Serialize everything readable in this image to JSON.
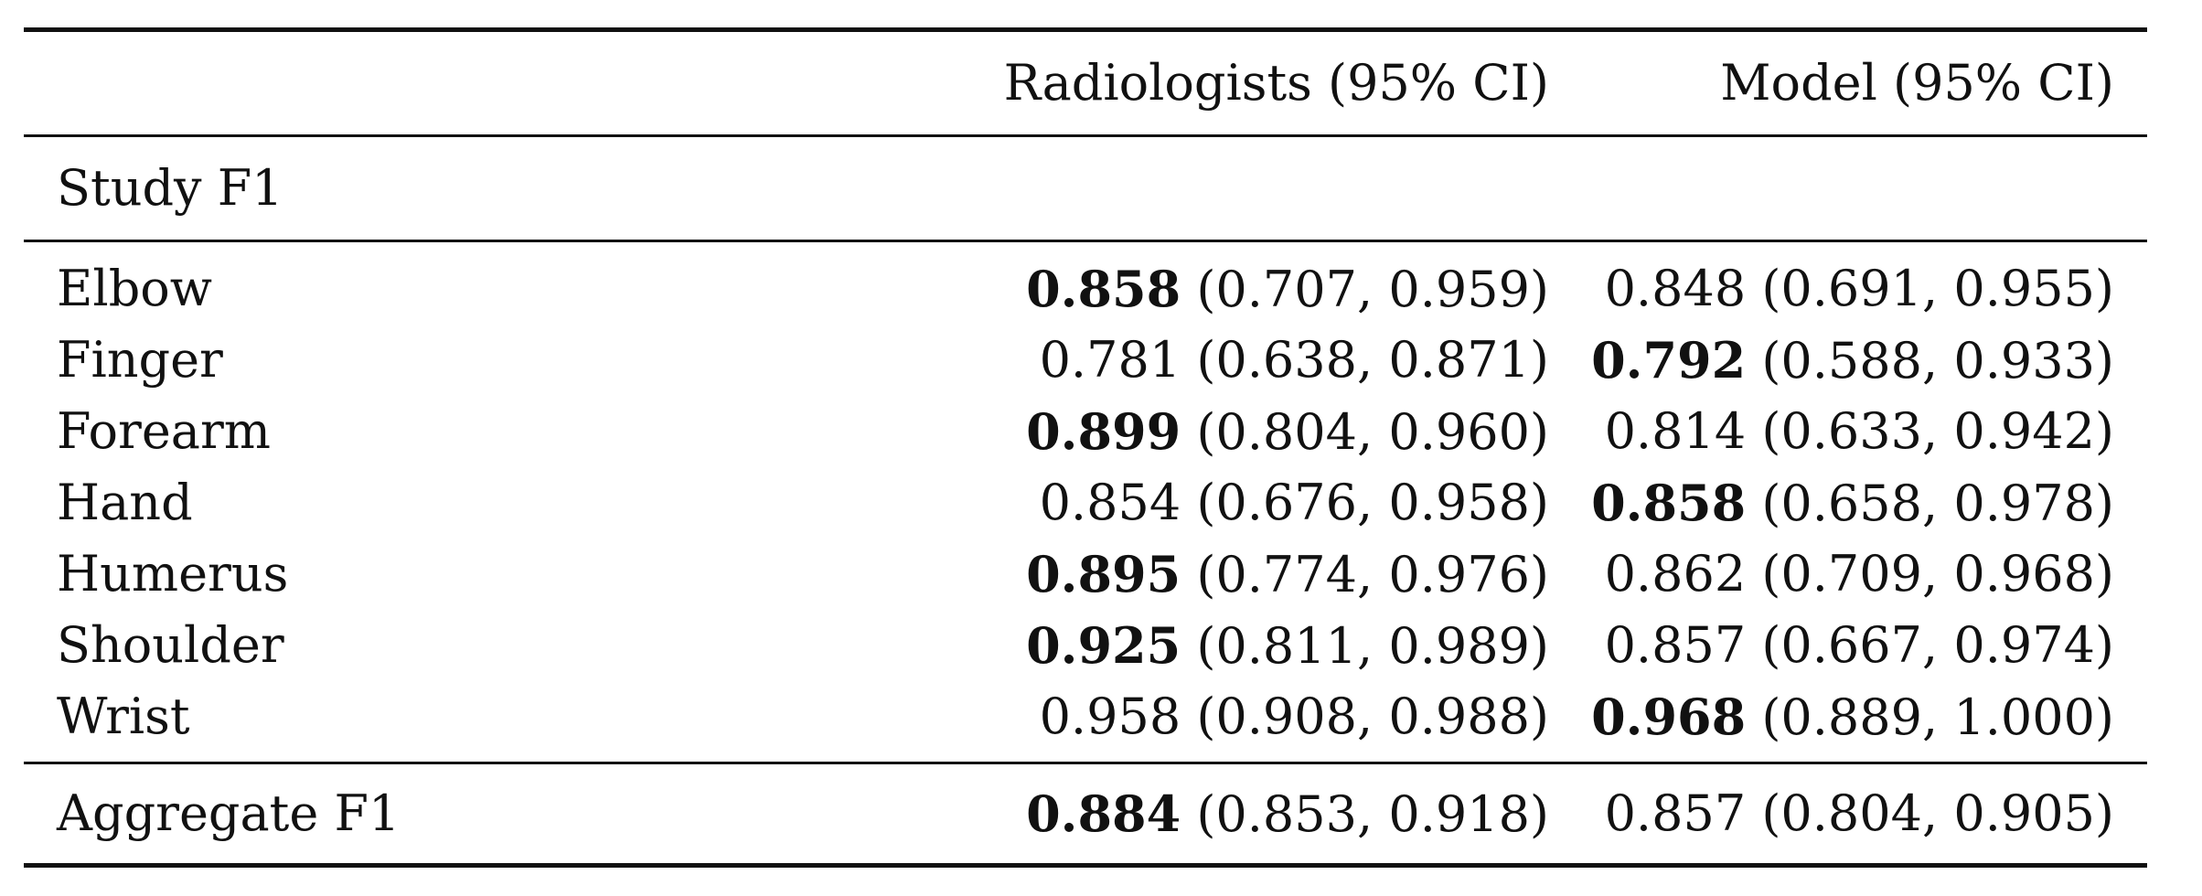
{
  "table": {
    "columns": [
      "",
      "Radiologists (95% CI)",
      "Model (95% CI)"
    ],
    "section_label": "Study F1",
    "rows": [
      {
        "label": "Elbow",
        "rad_value": "0.858",
        "rad_ci": "(0.707, 0.959)",
        "rad_bold": true,
        "mod_value": "0.848",
        "mod_ci": "(0.691, 0.955)",
        "mod_bold": false
      },
      {
        "label": "Finger",
        "rad_value": "0.781",
        "rad_ci": "(0.638, 0.871)",
        "rad_bold": false,
        "mod_value": "0.792",
        "mod_ci": "(0.588, 0.933)",
        "mod_bold": true
      },
      {
        "label": "Forearm",
        "rad_value": "0.899",
        "rad_ci": "(0.804, 0.960)",
        "rad_bold": true,
        "mod_value": "0.814",
        "mod_ci": "(0.633, 0.942)",
        "mod_bold": false
      },
      {
        "label": "Hand",
        "rad_value": "0.854",
        "rad_ci": "(0.676, 0.958)",
        "rad_bold": false,
        "mod_value": "0.858",
        "mod_ci": "(0.658, 0.978)",
        "mod_bold": true
      },
      {
        "label": "Humerus",
        "rad_value": "0.895",
        "rad_ci": "(0.774, 0.976)",
        "rad_bold": true,
        "mod_value": "0.862",
        "mod_ci": "(0.709, 0.968)",
        "mod_bold": false
      },
      {
        "label": "Shoulder",
        "rad_value": "0.925",
        "rad_ci": "(0.811, 0.989)",
        "rad_bold": true,
        "mod_value": "0.857",
        "mod_ci": "(0.667, 0.974)",
        "mod_bold": false
      },
      {
        "label": "Wrist",
        "rad_value": "0.958",
        "rad_ci": "(0.908, 0.988)",
        "rad_bold": false,
        "mod_value": "0.968",
        "mod_ci": "(0.889, 1.000)",
        "mod_bold": true
      }
    ],
    "aggregate": {
      "label": "Aggregate F1",
      "rad_value": "0.884",
      "rad_ci": "(0.853, 0.918)",
      "rad_bold": true,
      "mod_value": "0.857",
      "mod_ci": "(0.804, 0.905)",
      "mod_bold": false
    }
  }
}
